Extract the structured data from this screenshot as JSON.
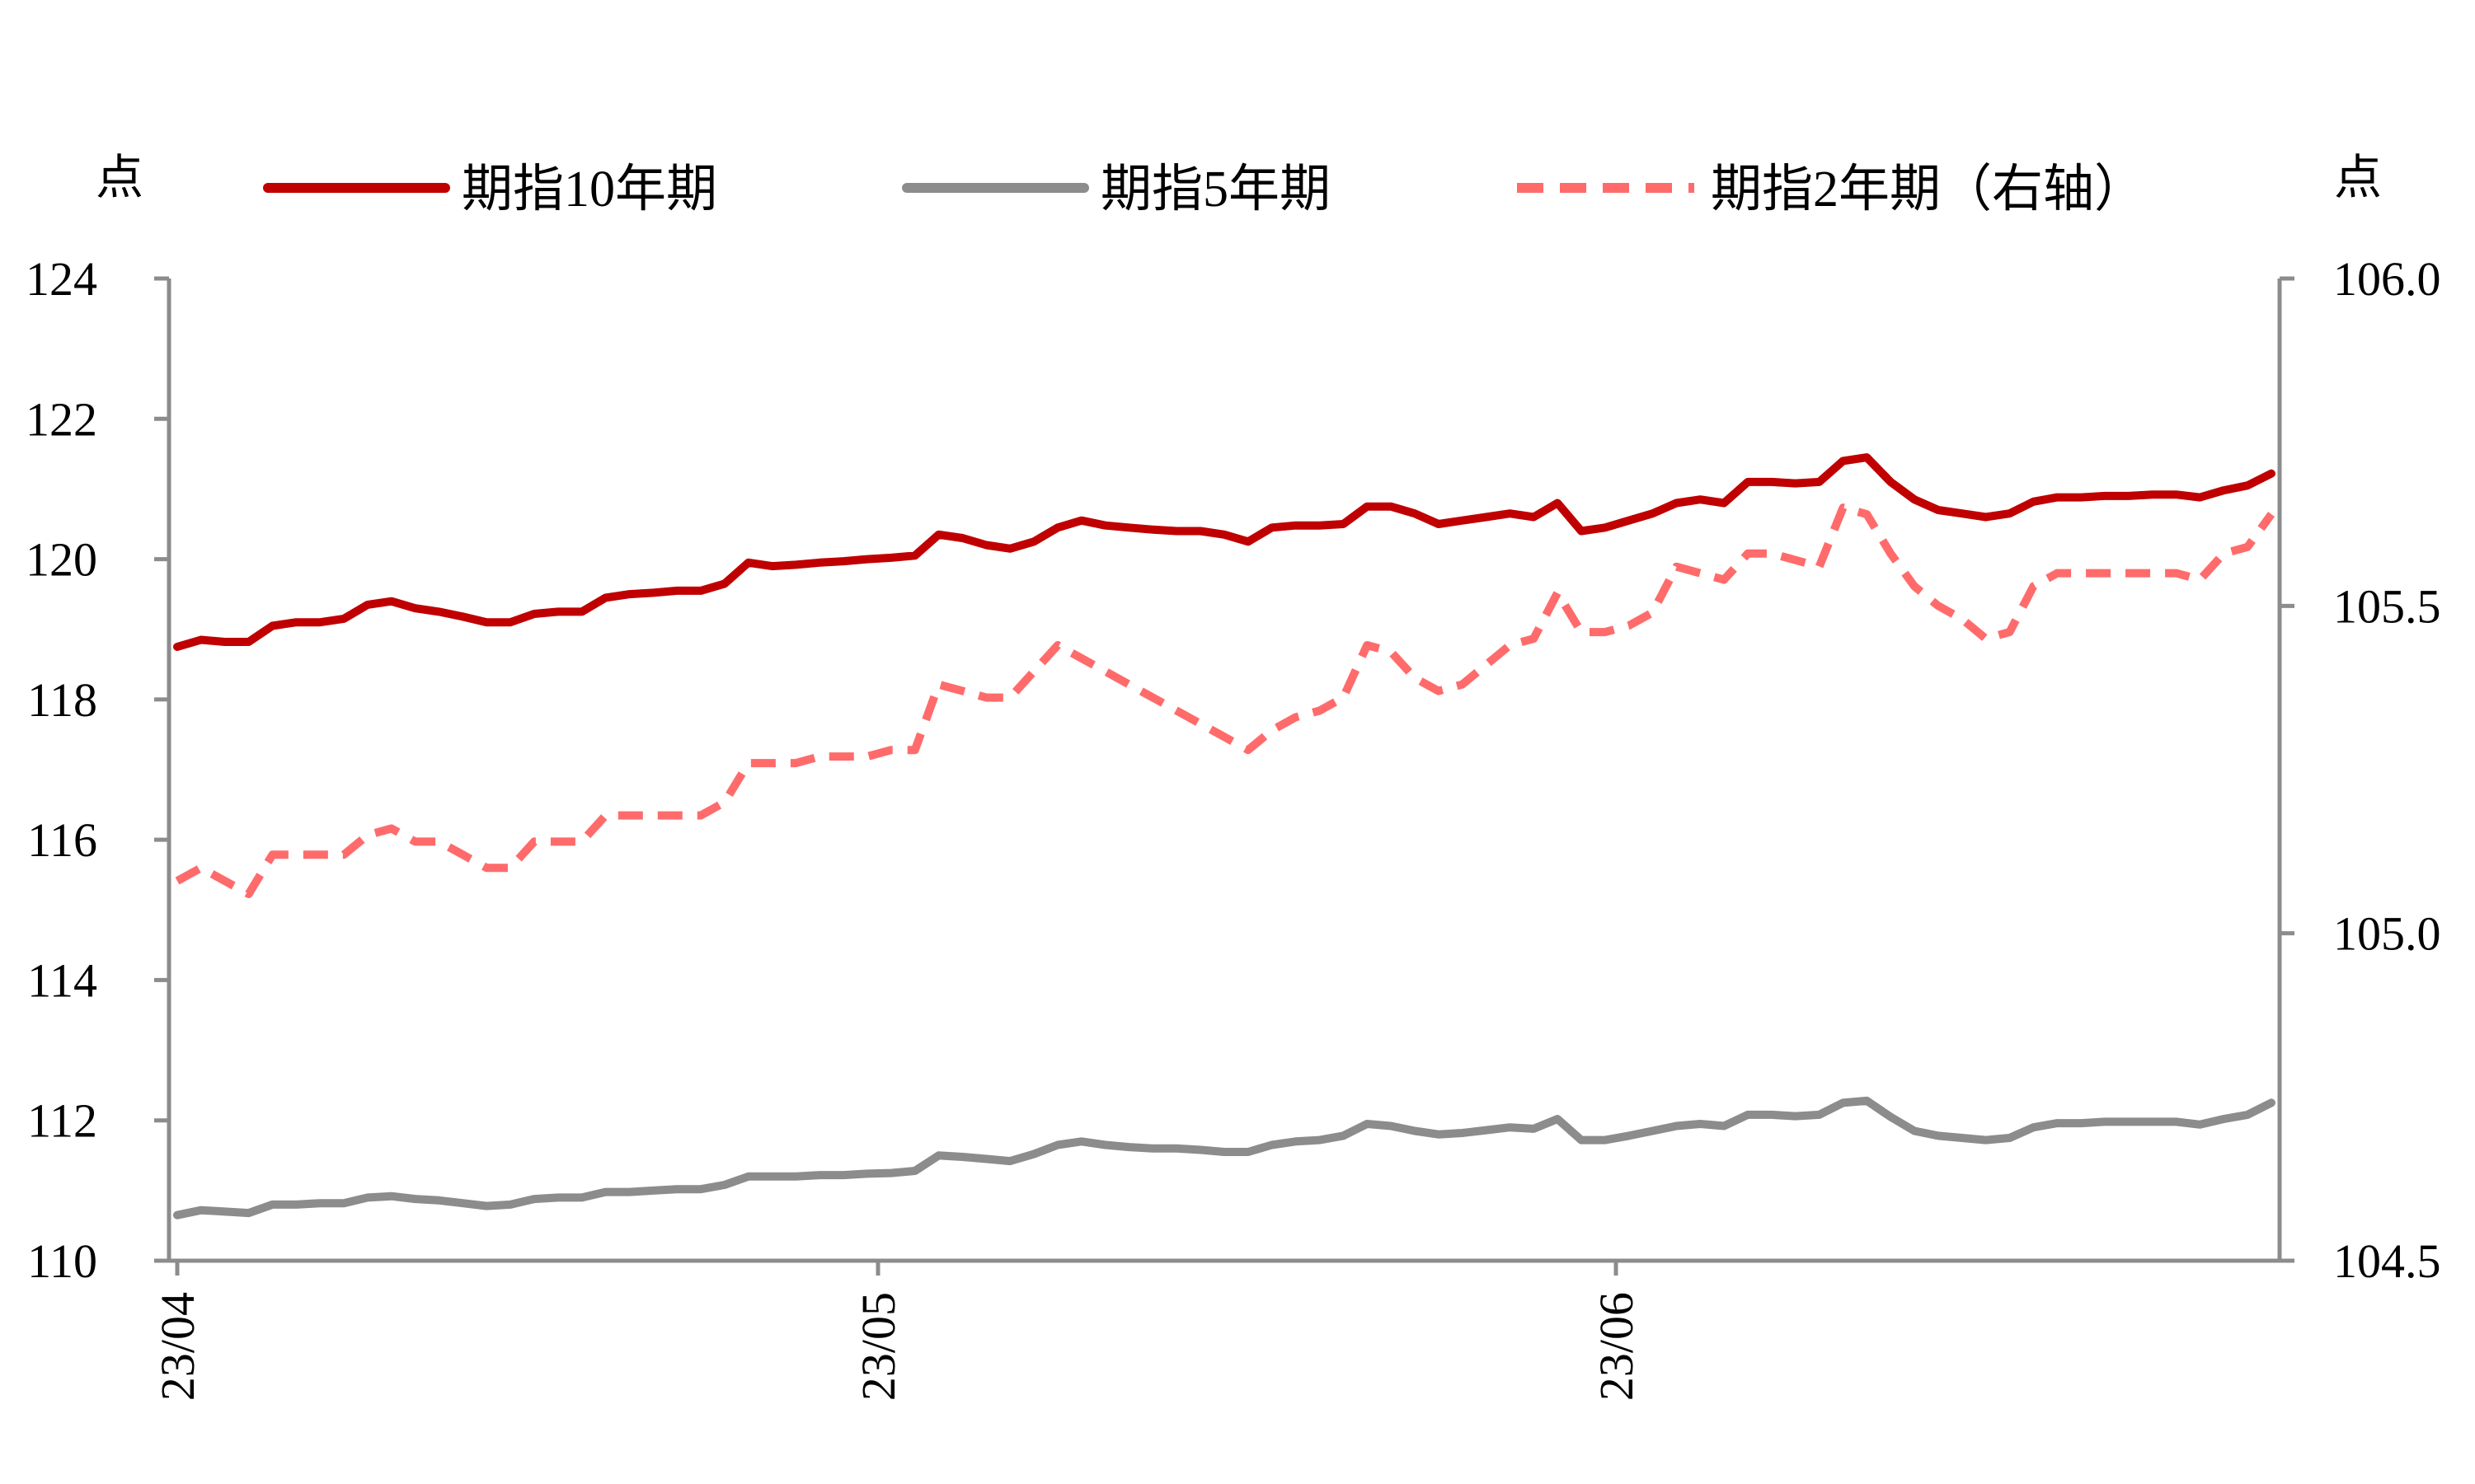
{
  "chart_data": {
    "type": "line",
    "left_unit": "点",
    "right_unit": "点",
    "x_ticks": [
      "23/04",
      "23/05",
      "23/06"
    ],
    "y_left": {
      "min": 110,
      "max": 124,
      "ticks": [
        "110",
        "112",
        "114",
        "116",
        "118",
        "120",
        "122",
        "124"
      ]
    },
    "y_right": {
      "min": 104.5,
      "max": 106.0,
      "ticks": [
        "104.5",
        "105.0",
        "105.5",
        "106.0"
      ]
    },
    "grid": false,
    "legend_position": "top",
    "series": [
      {
        "name": "期指10年期",
        "axis": "left",
        "color": "#C00000",
        "style": "solid",
        "values": [
          118.75,
          118.85,
          118.82,
          118.82,
          119.05,
          119.1,
          119.1,
          119.15,
          119.35,
          119.4,
          119.3,
          119.25,
          119.18,
          119.1,
          119.1,
          119.22,
          119.25,
          119.25,
          119.45,
          119.5,
          119.52,
          119.55,
          119.55,
          119.65,
          119.95,
          119.9,
          119.92,
          119.95,
          119.97,
          120.0,
          120.02,
          120.05,
          120.35,
          120.3,
          120.2,
          120.15,
          120.25,
          120.45,
          120.55,
          120.48,
          120.45,
          120.42,
          120.4,
          120.4,
          120.35,
          120.25,
          120.45,
          120.48,
          120.48,
          120.5,
          120.75,
          120.75,
          120.65,
          120.5,
          120.55,
          120.6,
          120.65,
          120.6,
          120.8,
          120.4,
          120.45,
          120.55,
          120.65,
          120.8,
          120.85,
          120.8,
          121.1,
          121.1,
          121.08,
          121.1,
          121.4,
          121.45,
          121.1,
          120.85,
          120.7,
          120.65,
          120.6,
          120.65,
          120.82,
          120.88,
          120.88,
          120.9,
          120.9,
          120.92,
          120.92,
          120.88,
          120.98,
          121.05,
          121.22
        ]
      },
      {
        "name": "期指5年期",
        "axis": "left",
        "color": "#8C8C8C",
        "style": "solid",
        "values": [
          110.65,
          110.72,
          110.7,
          110.68,
          110.8,
          110.8,
          110.82,
          110.82,
          110.9,
          110.92,
          110.88,
          110.86,
          110.82,
          110.78,
          110.8,
          110.88,
          110.9,
          110.9,
          110.98,
          110.98,
          111.0,
          111.02,
          111.02,
          111.08,
          111.2,
          111.2,
          111.2,
          111.22,
          111.22,
          111.24,
          111.25,
          111.28,
          111.5,
          111.48,
          111.45,
          111.42,
          111.52,
          111.65,
          111.7,
          111.65,
          111.62,
          111.6,
          111.6,
          111.58,
          111.55,
          111.55,
          111.65,
          111.7,
          111.72,
          111.78,
          111.95,
          111.92,
          111.85,
          111.8,
          111.82,
          111.86,
          111.9,
          111.88,
          112.02,
          111.72,
          111.72,
          111.78,
          111.85,
          111.92,
          111.95,
          111.92,
          112.08,
          112.08,
          112.06,
          112.08,
          112.25,
          112.28,
          112.05,
          111.85,
          111.78,
          111.75,
          111.72,
          111.75,
          111.9,
          111.96,
          111.96,
          111.98,
          111.98,
          111.98,
          111.98,
          111.94,
          112.02,
          112.08,
          112.25
        ]
      },
      {
        "name": "期指2年期（右轴）",
        "axis": "right",
        "color": "#FF6B6B",
        "style": "dashed",
        "values": [
          105.08,
          105.1,
          105.08,
          105.06,
          105.12,
          105.12,
          105.12,
          105.12,
          105.15,
          105.16,
          105.14,
          105.14,
          105.12,
          105.1,
          105.1,
          105.14,
          105.14,
          105.14,
          105.18,
          105.18,
          105.18,
          105.18,
          105.18,
          105.2,
          105.26,
          105.26,
          105.26,
          105.27,
          105.27,
          105.27,
          105.28,
          105.28,
          105.38,
          105.37,
          105.36,
          105.36,
          105.4,
          105.44,
          105.42,
          105.4,
          105.38,
          105.36,
          105.34,
          105.32,
          105.3,
          105.28,
          105.31,
          105.33,
          105.34,
          105.36,
          105.44,
          105.43,
          105.39,
          105.37,
          105.38,
          105.41,
          105.44,
          105.45,
          105.52,
          105.46,
          105.46,
          105.47,
          105.49,
          105.56,
          105.55,
          105.54,
          105.58,
          105.58,
          105.57,
          105.56,
          105.65,
          105.64,
          105.58,
          105.53,
          105.5,
          105.48,
          105.45,
          105.46,
          105.53,
          105.55,
          105.55,
          105.55,
          105.55,
          105.55,
          105.55,
          105.54,
          105.58,
          105.59,
          105.64
        ]
      }
    ]
  }
}
